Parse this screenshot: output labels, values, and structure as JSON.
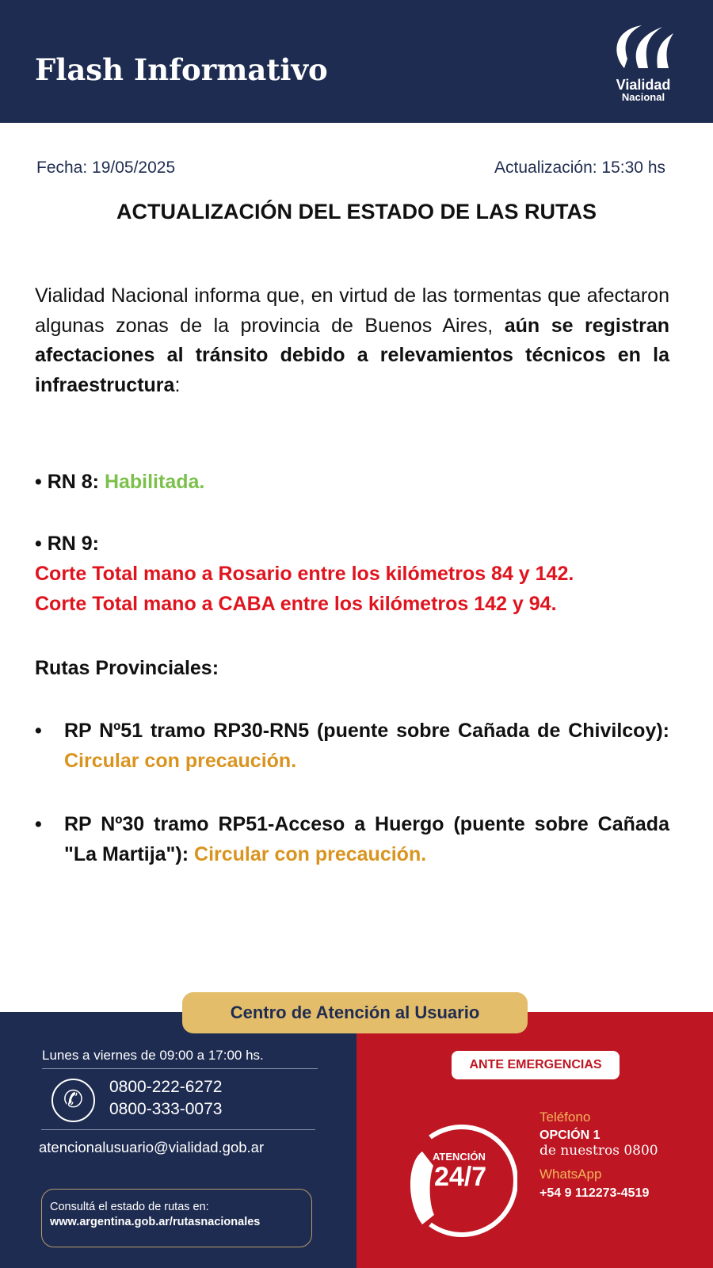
{
  "header": {
    "title": "Flash Informativo",
    "logo_line1": "Vialidad",
    "logo_line2": "Nacional"
  },
  "meta": {
    "date": "Fecha: 19/05/2025",
    "update": "Actualización: 15:30 hs"
  },
  "title": "ACTUALIZACIÓN DEL ESTADO DE LAS RUTAS",
  "intro": {
    "text": "Vialidad Nacional informa que, en virtud de las tormentas que afectaron algunas zonas de la provincia de Buenos Aires, ",
    "bold": "aún se registran afectaciones al tránsito debido a relevamientos técnicos en la infraestructura",
    "end": ":"
  },
  "routes": {
    "rn8": {
      "label": "• RN 8:",
      "status": "Habilitada."
    },
    "rn9": {
      "label": "• RN 9:",
      "line1": "Corte Total mano a Rosario entre los kilómetros 84 y 142.",
      "line2": "Corte Total mano a CABA entre los kilómetros 142 y 94."
    },
    "provincial_heading": "Rutas Provinciales:",
    "rp51": {
      "bullet": "•",
      "text": "RP Nº51 tramo RP30-RN5 (puente sobre Cañada de Chivilcoy): ",
      "status": "Circular con precaución."
    },
    "rp30": {
      "bullet": "•",
      "text": "RP Nº30 tramo RP51-Acceso a Huergo (puente sobre Cañada \"La Martija\"): ",
      "status": "Circular con precaución."
    }
  },
  "footer": {
    "center_title": "Centro de Atención al Usuario",
    "hours": "Lunes a viernes de 09:00 a 17:00 hs.",
    "phone1": "0800-222-6272",
    "phone2": "0800-333-0073",
    "email": "atencionalusuario@vialidad.gob.ar",
    "consult_line1": "Consultá el estado de rutas en:",
    "consult_line2": "www.argentina.gob.ar/rutasnacionales",
    "emergency_badge": "ANTE EMERGENCIAS",
    "clock_top": "ATENCIÓN",
    "clock_main": "24/7",
    "tel_label": "Teléfono",
    "tel_option": "OPCIÓN 1",
    "tel_sub": "de nuestros 0800",
    "wa_label": "WhatsApp",
    "wa_number": "+54 9 112273-4519"
  },
  "colors": {
    "navy": "#1f2c51",
    "red": "#be1622",
    "gold": "#e3bd6a",
    "green": "#7cc04c",
    "orange": "#d9941f",
    "alert_red": "#e0141e"
  }
}
